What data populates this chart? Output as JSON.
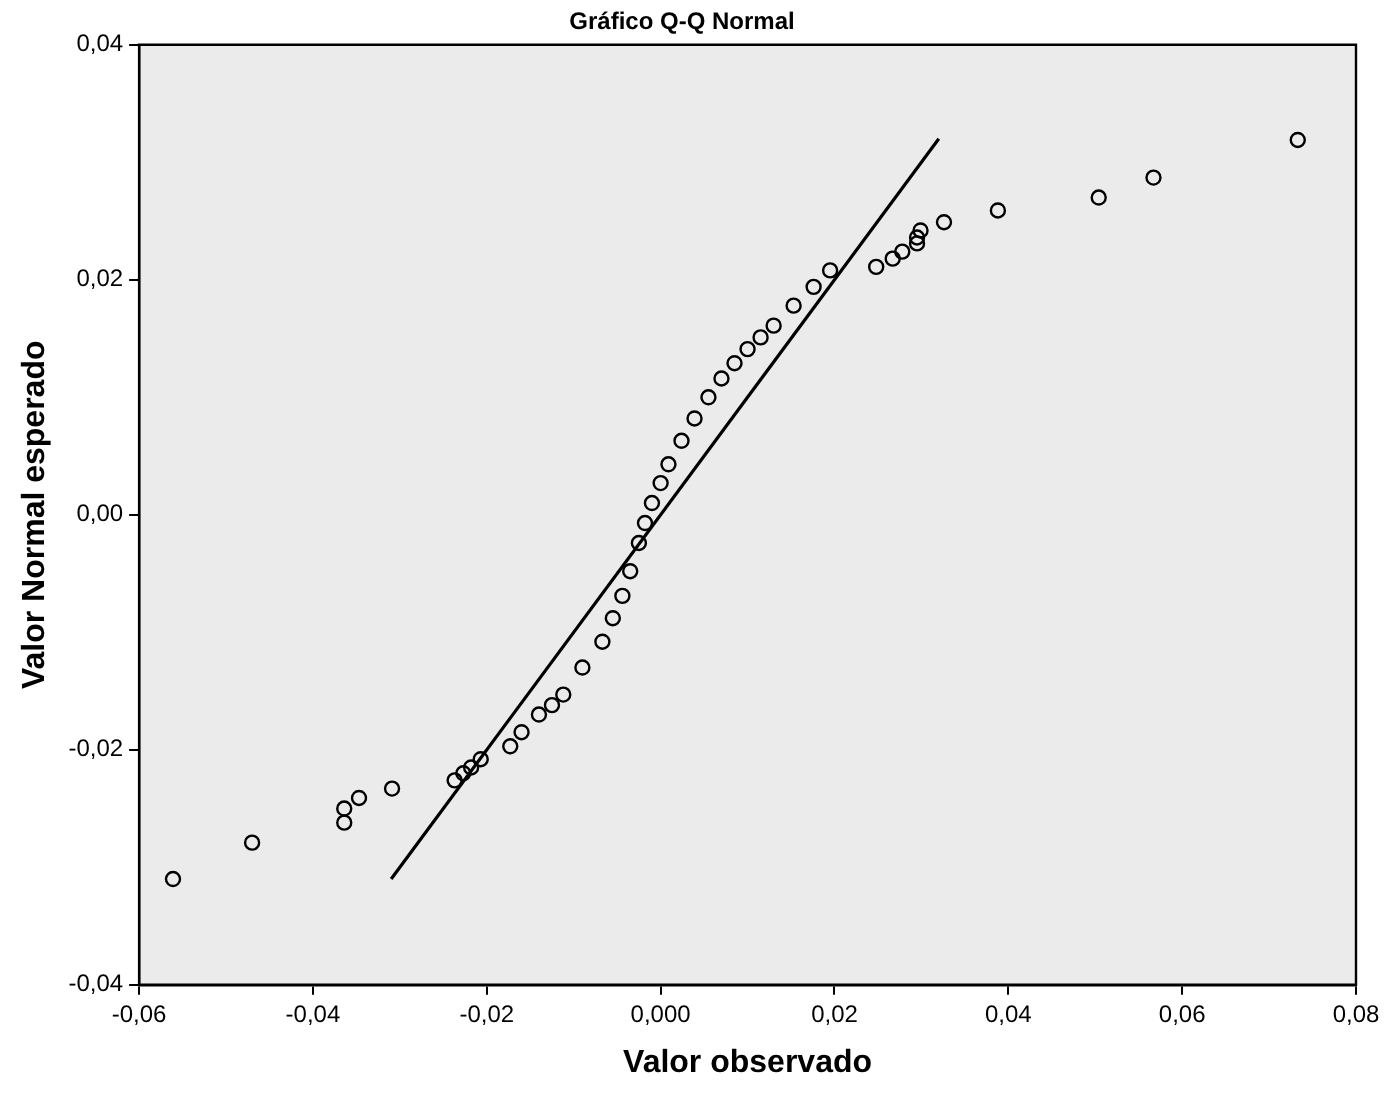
{
  "chart_data": {
    "type": "scatter",
    "title": "Gráfico Q-Q Normal",
    "xlabel": "Valor observado",
    "ylabel": "Valor Normal esperado",
    "xlim": [
      -0.06,
      0.08
    ],
    "xticks": [
      {
        "value": -0.06,
        "label": "-0,06"
      },
      {
        "value": -0.04,
        "label": "-0,04"
      },
      {
        "value": -0.02,
        "label": "-0,02"
      },
      {
        "value": 0,
        "label": "0,000"
      },
      {
        "value": 0.02,
        "label": "0,02"
      },
      {
        "value": 0.04,
        "label": "0,04"
      },
      {
        "value": 0.06,
        "label": "0,06"
      },
      {
        "value": 0.08,
        "label": "0,08"
      }
    ],
    "ylim": [
      -0.04,
      0.04
    ],
    "yticks": [
      {
        "value": -0.04,
        "label": "-0,04"
      },
      {
        "value": -0.02,
        "label": "-0,02"
      },
      {
        "value": 0,
        "label": "0,00"
      },
      {
        "value": 0.02,
        "label": "0,02"
      },
      {
        "value": 0.04,
        "label": "0,04"
      }
    ],
    "grid": false,
    "legend": false,
    "series": [
      {
        "marker": "circle",
        "color": "#000000",
        "x": [
          -0.0561,
          -0.047,
          -0.0364,
          -0.0364,
          -0.0347,
          -0.0309,
          -0.0237,
          -0.0227,
          -0.0218,
          -0.0207,
          -0.0173,
          -0.016,
          -0.014,
          -0.0125,
          -0.0112,
          -0.009,
          -0.0067,
          -0.0055,
          -0.0044,
          -0.0035,
          -0.0025,
          -0.0018,
          -0.001,
          0,
          0.0009,
          0.0024,
          0.0039,
          0.0055,
          0.007,
          0.0085,
          0.01,
          0.0115,
          0.013,
          0.0153,
          0.0176,
          0.0195,
          0.0248,
          0.0267,
          0.0278,
          0.0295,
          0.0295,
          0.0299,
          0.0326,
          0.0388,
          0.0504,
          0.0567,
          0.0733
        ],
        "values": [
          -0.031,
          -0.0279,
          -0.0262,
          -0.025,
          -0.0241,
          -0.0233,
          -0.0226,
          -0.022,
          -0.0215,
          -0.0208,
          -0.0197,
          -0.0185,
          -0.017,
          -0.0162,
          -0.0153,
          -0.013,
          -0.0108,
          -0.0088,
          -0.0069,
          -0.0048,
          -0.0024,
          -0.0007,
          0.001,
          0.0027,
          0.0043,
          0.0063,
          0.0082,
          0.01,
          0.0116,
          0.0129,
          0.0141,
          0.0151,
          0.0161,
          0.0178,
          0.0194,
          0.0208,
          0.0211,
          0.0218,
          0.0224,
          0.0231,
          0.0236,
          0.0242,
          0.0249,
          0.0259,
          0.027,
          0.0287,
          0.0319
        ]
      },
      {
        "type": "line",
        "marker": "none",
        "color": "#000000",
        "x": [
          -0.031,
          0.032
        ],
        "values": [
          -0.031,
          0.032
        ]
      }
    ]
  }
}
